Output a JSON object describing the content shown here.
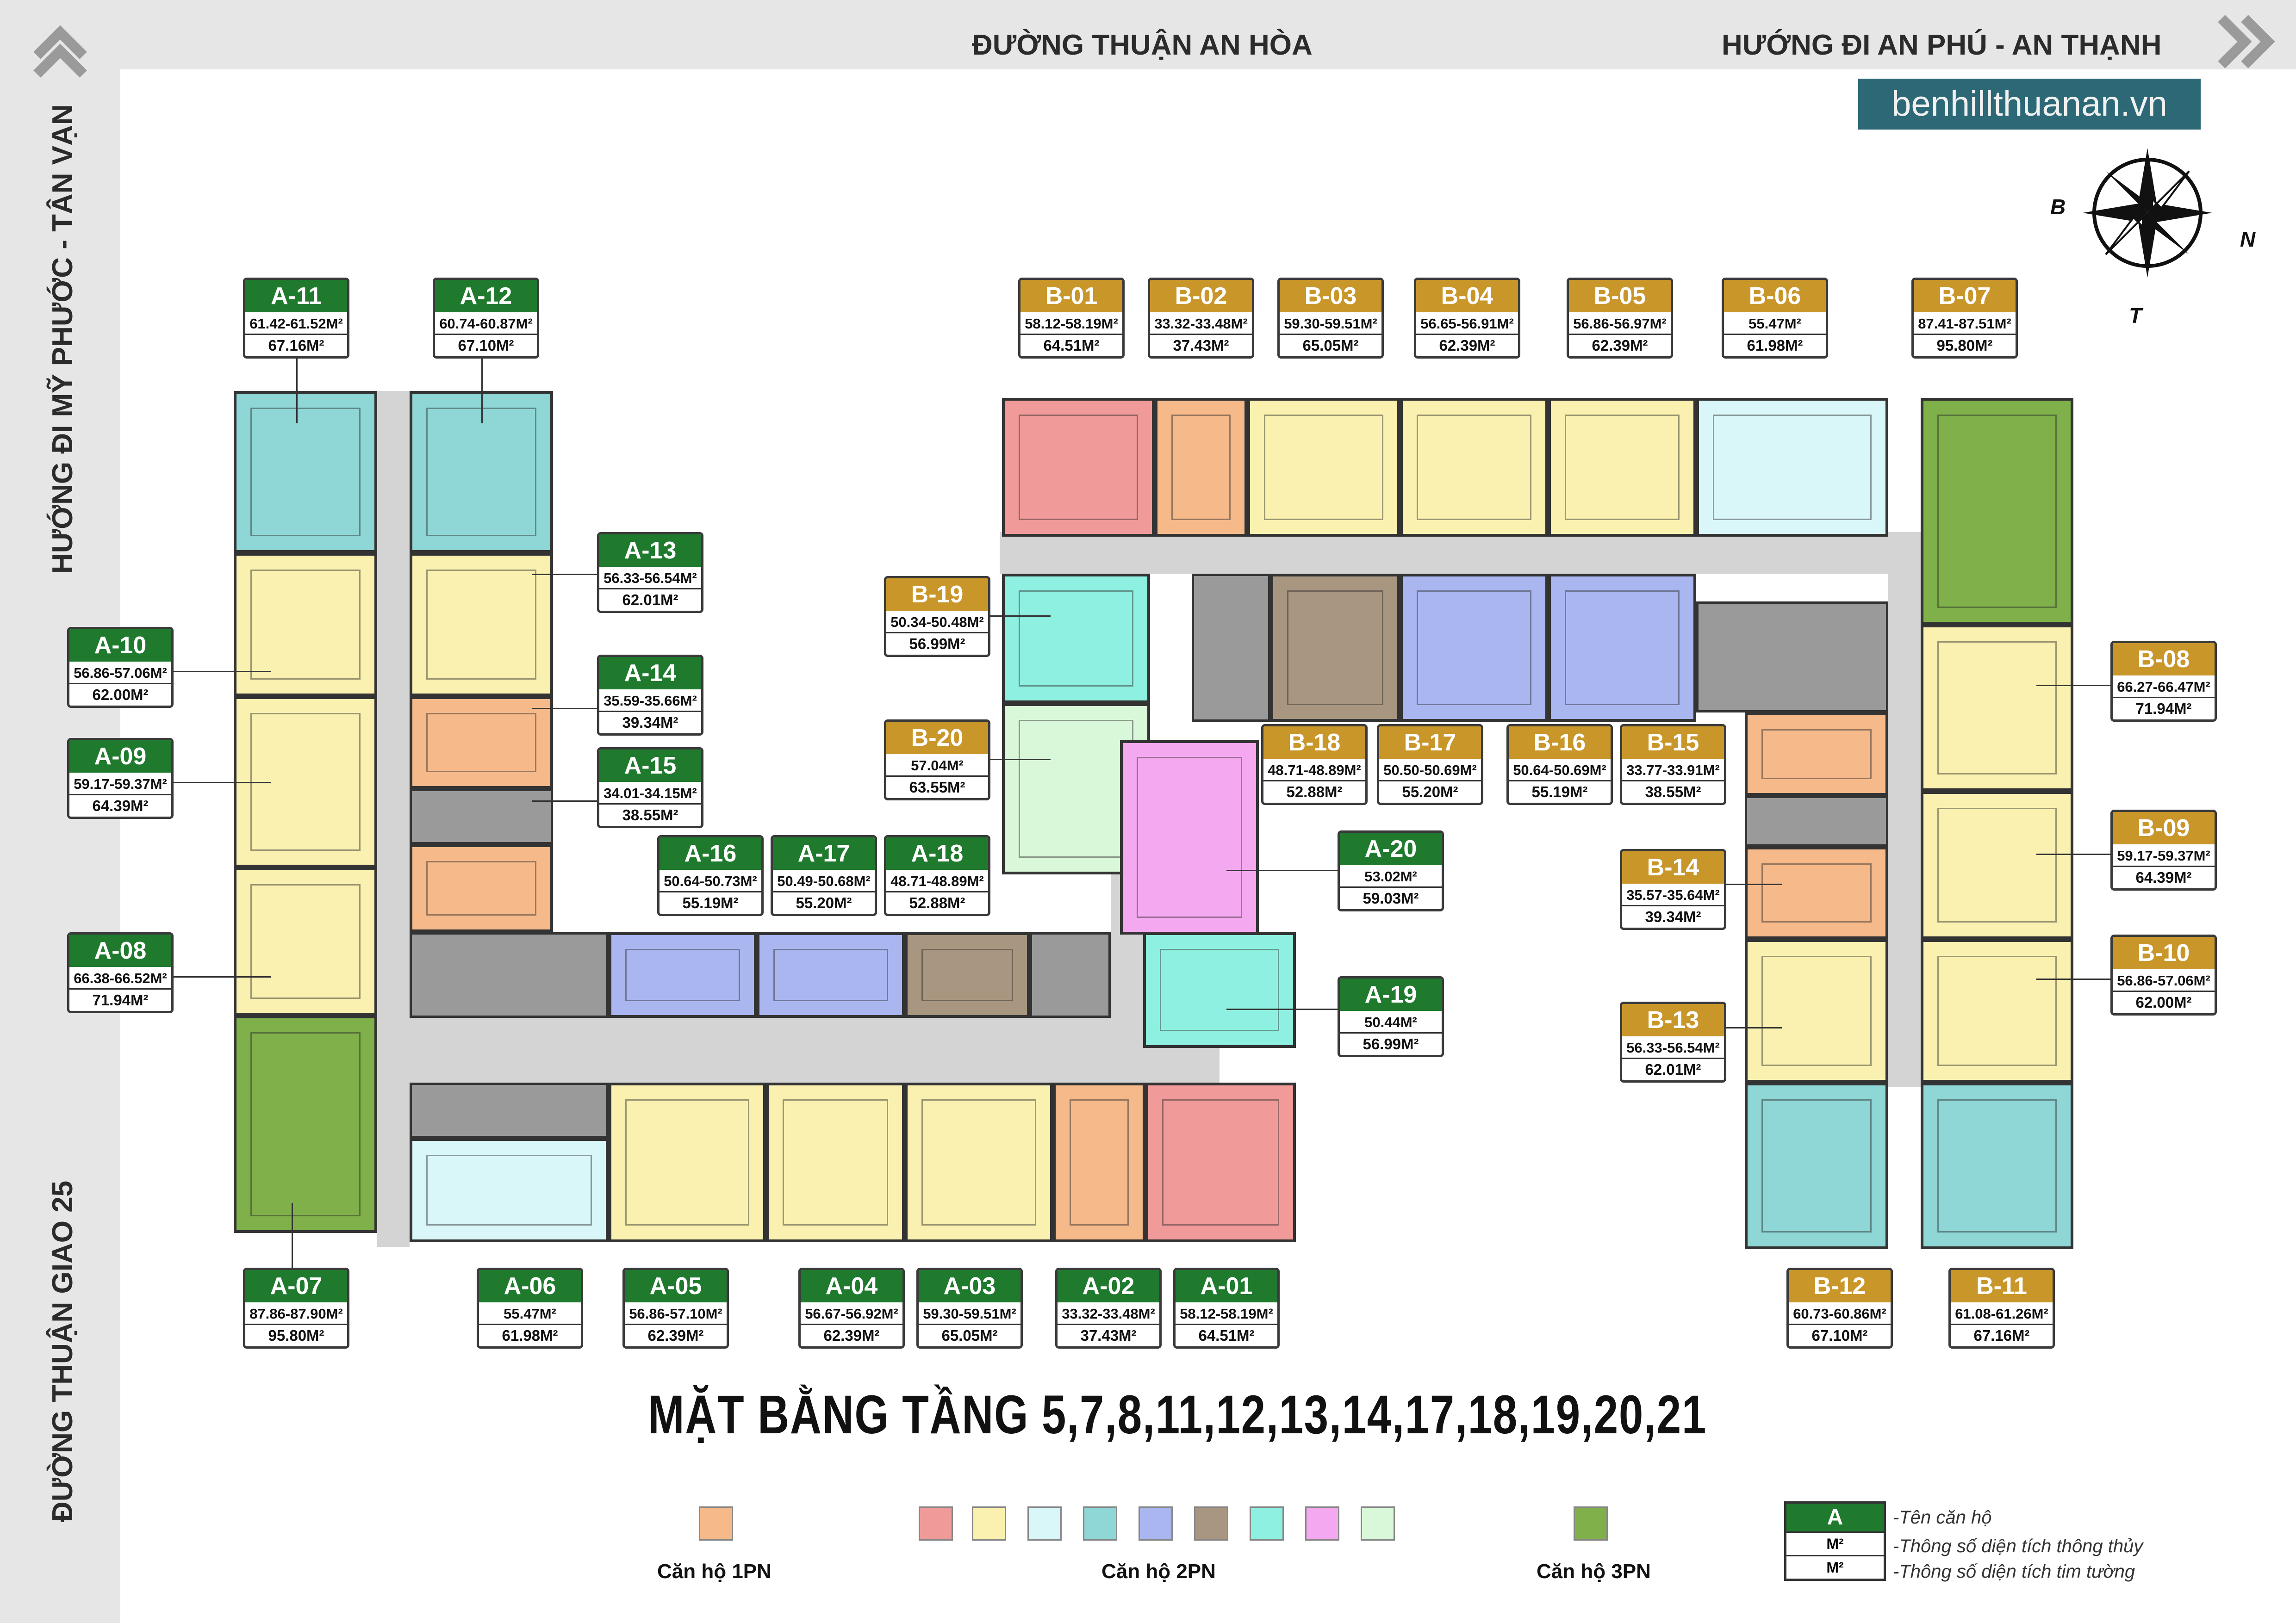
{
  "roads": {
    "top_center": "ĐƯỜNG THUẬN AN HÒA",
    "top_right": "HƯỚNG ĐI AN PHÚ - AN THẠNH",
    "left_top": "HƯỚNG ĐI MỸ PHƯỚC - TÂN VẠN",
    "left_bottom": "ĐƯỜNG THUẬN GIAO 25"
  },
  "brand": "benhillthuanan.vn",
  "compass": {
    "west": "B",
    "east": "N",
    "south": "T"
  },
  "title": "MẶT BẰNG TẦNG 5,7,8,11,12,13,14,17,18,19,20,21",
  "units": {
    "A-11": {
      "name": "A-11",
      "l1": "61.42-61.52M²",
      "l2": "67.16M²"
    },
    "A-12": {
      "name": "A-12",
      "l1": "60.74-60.87M²",
      "l2": "67.10M²"
    },
    "A-13": {
      "name": "A-13",
      "l1": "56.33-56.54M²",
      "l2": "62.01M²"
    },
    "A-14": {
      "name": "A-14",
      "l1": "35.59-35.66M²",
      "l2": "39.34M²"
    },
    "A-15": {
      "name": "A-15",
      "l1": "34.01-34.15M²",
      "l2": "38.55M²"
    },
    "A-10": {
      "name": "A-10",
      "l1": "56.86-57.06M²",
      "l2": "62.00M²"
    },
    "A-09": {
      "name": "A-09",
      "l1": "59.17-59.37M²",
      "l2": "64.39M²"
    },
    "A-08": {
      "name": "A-08",
      "l1": "66.38-66.52M²",
      "l2": "71.94M²"
    },
    "A-16": {
      "name": "A-16",
      "l1": "50.64-50.73M²",
      "l2": "55.19M²"
    },
    "A-17": {
      "name": "A-17",
      "l1": "50.49-50.68M²",
      "l2": "55.20M²"
    },
    "A-18": {
      "name": "A-18",
      "l1": "48.71-48.89M²",
      "l2": "52.88M²"
    },
    "A-20": {
      "name": "A-20",
      "l1": "53.02M²",
      "l2": "59.03M²"
    },
    "A-19": {
      "name": "A-19",
      "l1": "50.44M²",
      "l2": "56.99M²"
    },
    "A-07": {
      "name": "A-07",
      "l1": "87.86-87.90M²",
      "l2": "95.80M²"
    },
    "A-06": {
      "name": "A-06",
      "l1": "55.47M²",
      "l2": "61.98M²"
    },
    "A-05": {
      "name": "A-05",
      "l1": "56.86-57.10M²",
      "l2": "62.39M²"
    },
    "A-04": {
      "name": "A-04",
      "l1": "56.67-56.92M²",
      "l2": "62.39M²"
    },
    "A-03": {
      "name": "A-03",
      "l1": "59.30-59.51M²",
      "l2": "65.05M²"
    },
    "A-02": {
      "name": "A-02",
      "l1": "33.32-33.48M²",
      "l2": "37.43M²"
    },
    "A-01": {
      "name": "A-01",
      "l1": "58.12-58.19M²",
      "l2": "64.51M²"
    },
    "B-01": {
      "name": "B-01",
      "l1": "58.12-58.19M²",
      "l2": "64.51M²"
    },
    "B-02": {
      "name": "B-02",
      "l1": "33.32-33.48M²",
      "l2": "37.43M²"
    },
    "B-03": {
      "name": "B-03",
      "l1": "59.30-59.51M²",
      "l2": "65.05M²"
    },
    "B-04": {
      "name": "B-04",
      "l1": "56.65-56.91M²",
      "l2": "62.39M²"
    },
    "B-05": {
      "name": "B-05",
      "l1": "56.86-56.97M²",
      "l2": "62.39M²"
    },
    "B-06": {
      "name": "B-06",
      "l1": "55.47M²",
      "l2": "61.98M²"
    },
    "B-07": {
      "name": "B-07",
      "l1": "87.41-87.51M²",
      "l2": "95.80M²"
    },
    "B-19": {
      "name": "B-19",
      "l1": "50.34-50.48M²",
      "l2": "56.99M²"
    },
    "B-20": {
      "name": "B-20",
      "l1": "57.04M²",
      "l2": "63.55M²"
    },
    "B-18": {
      "name": "B-18",
      "l1": "48.71-48.89M²",
      "l2": "52.88M²"
    },
    "B-17": {
      "name": "B-17",
      "l1": "50.50-50.69M²",
      "l2": "55.20M²"
    },
    "B-16": {
      "name": "B-16",
      "l1": "50.64-50.69M²",
      "l2": "55.19M²"
    },
    "B-15": {
      "name": "B-15",
      "l1": "33.77-33.91M²",
      "l2": "38.55M²"
    },
    "B-08": {
      "name": "B-08",
      "l1": "66.27-66.47M²",
      "l2": "71.94M²"
    },
    "B-09": {
      "name": "B-09",
      "l1": "59.17-59.37M²",
      "l2": "64.39M²"
    },
    "B-10": {
      "name": "B-10",
      "l1": "56.86-57.06M²",
      "l2": "62.00M²"
    },
    "B-14": {
      "name": "B-14",
      "l1": "35.57-35.64M²",
      "l2": "39.34M²"
    },
    "B-13": {
      "name": "B-13",
      "l1": "56.33-56.54M²",
      "l2": "62.01M²"
    },
    "B-12": {
      "name": "B-12",
      "l1": "60.73-60.86M²",
      "l2": "67.10M²"
    },
    "B-11": {
      "name": "B-11",
      "l1": "61.08-61.26M²",
      "l2": "67.16M²"
    }
  },
  "colors": {
    "1pn": "#f5b98a",
    "red": "#f09a9a",
    "yellow": "#faf0b0",
    "ltcyan": "#d9f6f8",
    "teal": "#8fd6d6",
    "blue": "#a9b6f0",
    "brown": "#a89680",
    "aqua": "#8ef0e0",
    "pink": "#f4a8ef",
    "mint": "#d9f7d9",
    "green3": "#7fb04a"
  },
  "legend": {
    "one_bed": "Căn hộ 1PN",
    "two_bed": "Căn hộ 2PN",
    "three_bed": "Căn hộ 3PN",
    "key_letter": "A",
    "key_row1": "M²",
    "key_row2": "M²",
    "key_desc1": "-Tên căn hộ",
    "key_desc2": "-Thông số diện tích thông thủy",
    "key_desc3": "-Thông số diện tích tim tường"
  }
}
